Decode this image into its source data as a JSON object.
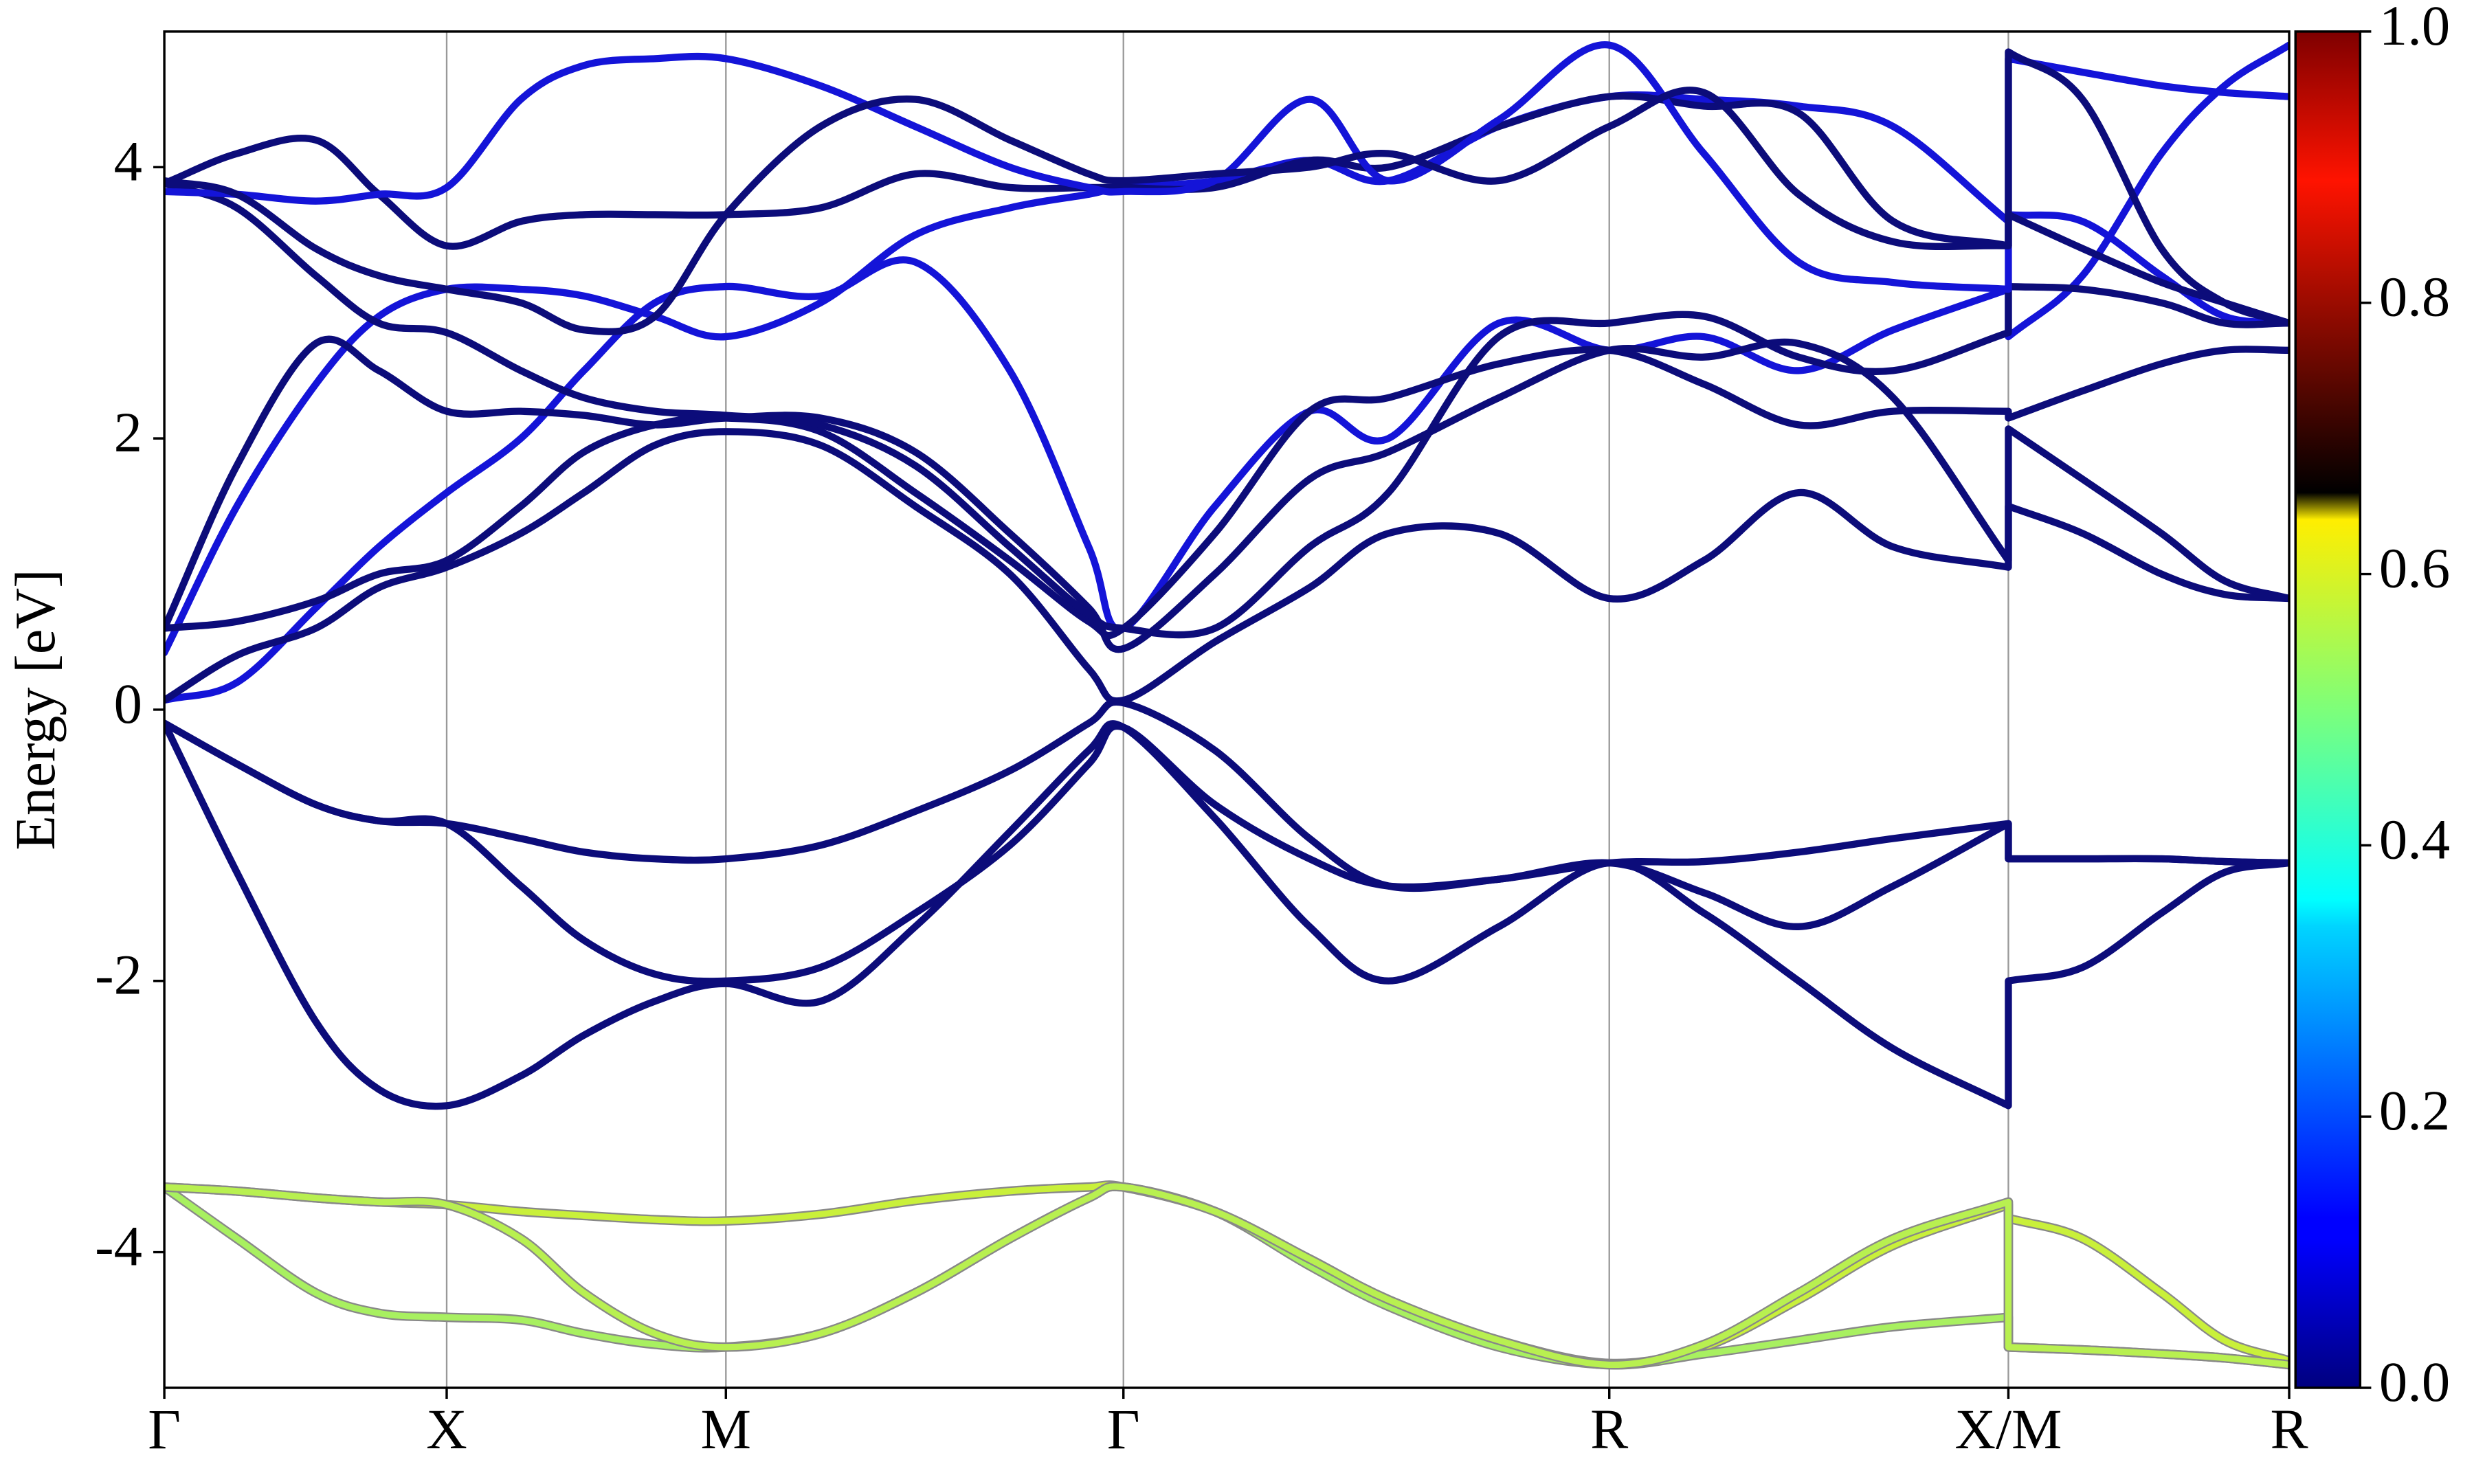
{
  "chart_data": {
    "type": "line",
    "ylabel": "Energy [eV]",
    "x": [
      0,
      46,
      96,
      136,
      179,
      226,
      266,
      311,
      356,
      416,
      476,
      536,
      586,
      608,
      666,
      726,
      776,
      846,
      916,
      976,
      1036,
      1096,
      1169,
      1169,
      1216,
      1266,
      1306,
      1347
    ],
    "xlim": [
      0,
      1347
    ],
    "xticks": [
      {
        "value": 0,
        "label": "Γ"
      },
      {
        "value": 179,
        "label": "X"
      },
      {
        "value": 356,
        "label": "M"
      },
      {
        "value": 608,
        "label": "Γ"
      },
      {
        "value": 916,
        "label": "R"
      },
      {
        "value": 1169,
        "label": "X/M"
      },
      {
        "value": 1347,
        "label": "R"
      }
    ],
    "ylim": [
      -5,
      5
    ],
    "yticks": [
      -4,
      -2,
      0,
      2,
      4
    ],
    "grid": "x",
    "series": [
      {
        "color": "#c9f03a",
        "values": [
          -3.52,
          -3.55,
          -3.6,
          -3.63,
          -3.65,
          -3.7,
          -3.73,
          -3.76,
          -3.77,
          -3.72,
          -3.62,
          -3.55,
          -3.52,
          -3.52,
          -3.7,
          -4.05,
          -4.35,
          -4.65,
          -4.82,
          -4.7,
          -4.35,
          -3.95,
          -3.65,
          -3.75,
          -3.9,
          -4.3,
          -4.65,
          -4.8
        ]
      },
      {
        "color": "#a8f060",
        "values": [
          -3.52,
          -3.9,
          -4.3,
          -4.45,
          -4.48,
          -4.5,
          -4.6,
          -4.68,
          -4.7,
          -4.6,
          -4.3,
          -3.9,
          -3.6,
          -3.52,
          -3.7,
          -4.1,
          -4.4,
          -4.7,
          -4.83,
          -4.75,
          -4.65,
          -4.55,
          -4.48,
          -4.7,
          -4.72,
          -4.75,
          -4.78,
          -4.83
        ]
      },
      {
        "color": "#b8f050",
        "values": [
          -3.52,
          -3.55,
          -3.6,
          -3.63,
          -3.65,
          -3.9,
          -4.3,
          -4.6,
          -4.7,
          -4.6,
          -4.3,
          -3.9,
          -3.6,
          -3.52,
          -3.7,
          -4.05,
          -4.35,
          -4.65,
          -4.83,
          -4.68,
          -4.3,
          -3.9,
          -3.63,
          -4.7,
          -4.72,
          -4.75,
          -4.78,
          -4.83
        ]
      },
      {
        "color": "#0c0c7a",
        "values": [
          -0.1,
          -1.2,
          -2.3,
          -2.8,
          -2.92,
          -2.7,
          -2.4,
          -2.15,
          -2.02,
          -2.15,
          -1.6,
          -0.9,
          -0.3,
          -0.13,
          -0.8,
          -1.6,
          -2.0,
          -1.6,
          -1.13,
          -1.5,
          -2.0,
          -2.5,
          -2.92,
          -2.0,
          -1.9,
          -1.5,
          -1.2,
          -1.13
        ]
      },
      {
        "color": "#0c0c7a",
        "values": [
          -0.1,
          -0.4,
          -0.7,
          -0.82,
          -0.84,
          -1.3,
          -1.7,
          -1.95,
          -2.0,
          -1.9,
          -1.5,
          -1.0,
          -0.4,
          -0.13,
          -0.7,
          -1.1,
          -1.3,
          -1.25,
          -1.13,
          -1.35,
          -1.6,
          -1.3,
          -0.84,
          -1.1,
          -1.1,
          -1.1,
          -1.12,
          -1.13
        ]
      },
      {
        "color": "#0c0c7a",
        "values": [
          -0.1,
          -0.4,
          -0.7,
          -0.82,
          -0.84,
          -0.95,
          -1.05,
          -1.1,
          -1.1,
          -1.0,
          -0.75,
          -0.45,
          -0.1,
          0.05,
          -0.3,
          -0.95,
          -1.3,
          -1.25,
          -1.13,
          -1.12,
          -1.05,
          -0.95,
          -0.84,
          -1.1,
          -1.1,
          -1.1,
          -1.12,
          -1.13
        ]
      },
      {
        "color": "#1414d8",
        "values": [
          0.07,
          0.2,
          0.75,
          1.2,
          1.6,
          2.0,
          2.5,
          3.0,
          3.12,
          3.05,
          3.3,
          2.5,
          1.2,
          0.6,
          1.5,
          2.2,
          2.0,
          2.85,
          2.65,
          2.75,
          2.5,
          2.8,
          3.1,
          2.75,
          3.2,
          4.1,
          4.6,
          4.9
        ]
      },
      {
        "color": "#0c0c7a",
        "values": [
          0.07,
          0.4,
          0.6,
          0.9,
          1.05,
          1.3,
          1.6,
          1.95,
          2.05,
          1.95,
          1.5,
          1.0,
          0.3,
          0.07,
          0.5,
          0.9,
          1.3,
          1.3,
          0.82,
          1.1,
          1.6,
          1.2,
          1.05,
          1.5,
          1.3,
          1.0,
          0.85,
          0.82
        ]
      },
      {
        "color": "#1414d8",
        "values": [
          0.42,
          1.5,
          2.4,
          2.9,
          3.1,
          3.1,
          3.05,
          2.9,
          2.75,
          3.0,
          3.5,
          3.7,
          3.8,
          3.85,
          3.9,
          4.05,
          3.9,
          4.3,
          4.52,
          4.5,
          4.45,
          4.3,
          3.6,
          3.65,
          3.6,
          3.2,
          2.9,
          2.85
        ]
      },
      {
        "color": "#0c0c7a",
        "values": [
          0.6,
          0.65,
          0.8,
          1.0,
          1.1,
          1.5,
          1.9,
          2.1,
          2.15,
          2.05,
          1.6,
          1.1,
          0.65,
          0.6,
          1.3,
          2.2,
          2.3,
          2.55,
          2.65,
          2.4,
          2.1,
          2.2,
          2.2,
          2.15,
          2.35,
          2.55,
          2.65,
          2.65
        ]
      },
      {
        "color": "#0c0c7a",
        "values": [
          0.6,
          1.8,
          2.7,
          2.5,
          2.2,
          2.2,
          2.17,
          2.1,
          2.15,
          2.15,
          1.9,
          1.3,
          0.75,
          0.45,
          1.0,
          1.7,
          1.9,
          2.3,
          2.65,
          2.6,
          2.7,
          2.3,
          1.1,
          2.07,
          1.7,
          1.3,
          0.95,
          0.82
        ]
      },
      {
        "color": "#0c0c7a",
        "values": [
          3.88,
          4.1,
          4.2,
          3.8,
          3.42,
          3.6,
          3.65,
          3.65,
          3.65,
          3.7,
          3.95,
          3.85,
          3.85,
          3.85,
          3.85,
          4.05,
          4.0,
          4.3,
          4.52,
          4.45,
          4.4,
          3.6,
          3.42,
          3.65,
          3.4,
          3.15,
          3.0,
          2.85
        ]
      },
      {
        "color": "#0c0c7a",
        "values": [
          3.88,
          3.7,
          3.2,
          2.85,
          2.78,
          2.5,
          2.3,
          2.2,
          2.17,
          2.1,
          1.8,
          1.2,
          0.7,
          0.6,
          0.6,
          1.2,
          1.6,
          2.75,
          2.85,
          2.9,
          2.6,
          2.5,
          2.78,
          3.12,
          3.1,
          3.0,
          2.85,
          2.85
        ]
      },
      {
        "color": "#1414d8",
        "values": [
          3.82,
          3.8,
          3.75,
          3.8,
          3.85,
          4.5,
          4.75,
          4.8,
          4.8,
          4.6,
          4.3,
          4.0,
          3.85,
          3.82,
          3.9,
          4.5,
          3.9,
          4.35,
          4.9,
          4.1,
          3.3,
          3.15,
          3.1,
          4.8,
          4.7,
          4.6,
          4.55,
          4.52
        ]
      },
      {
        "color": "#0c0c7a",
        "values": [
          3.9,
          3.8,
          3.4,
          3.2,
          3.1,
          3.0,
          2.8,
          2.9,
          3.65,
          4.3,
          4.5,
          4.2,
          3.95,
          3.9,
          3.95,
          4.0,
          4.1,
          3.9,
          4.3,
          4.55,
          3.8,
          3.45,
          3.42,
          4.85,
          4.5,
          3.4,
          3.0,
          2.85
        ]
      }
    ],
    "colorbar": {
      "colormap": "jet",
      "lim": [
        0,
        1
      ],
      "ticks": [
        {
          "value": 0,
          "label": "0.0"
        },
        0.2,
        0.4,
        0.6,
        0.8,
        {
          "value": 1,
          "label": "1.0"
        }
      ]
    }
  }
}
